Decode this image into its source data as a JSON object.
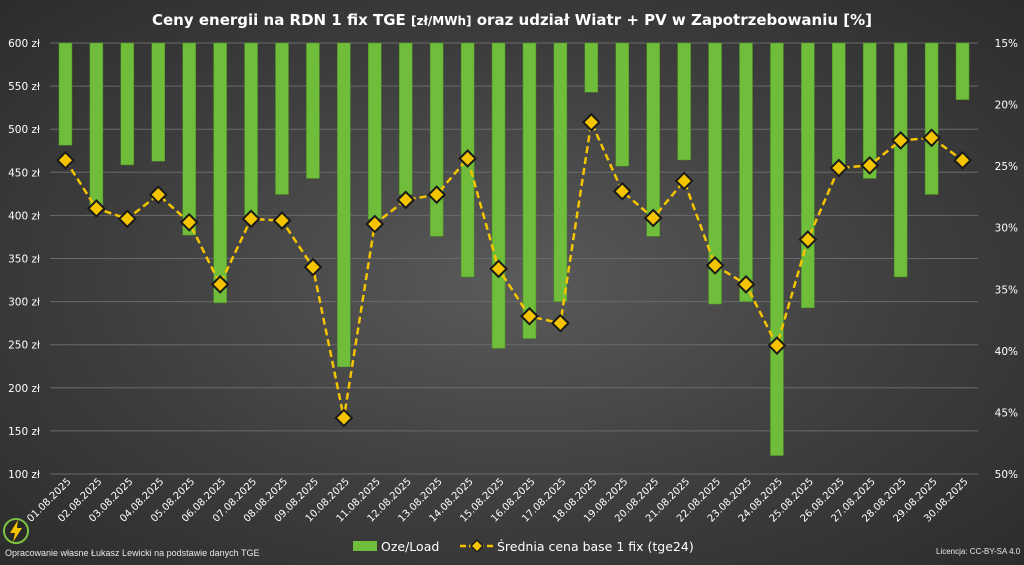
{
  "colors": {
    "bar": "#6fbd3a",
    "bar_edge": "#4e8f26",
    "line": "#f5c400",
    "marker_fill": "#f5c400",
    "marker_edge": "#1a1a1a",
    "grid": "#6a6a6a"
  },
  "chart_data": {
    "type": "bar",
    "title_main_1": "Ceny energii na RDN 1 fix TGE ",
    "title_unit": "[zł/MWh]",
    "title_main_2": " oraz udział Wiatr + PV w Zapotrzebowaniu [%]",
    "categories": [
      "01.08.2025",
      "02.08.2025",
      "03.08.2025",
      "04.08.2025",
      "05.08.2025",
      "06.08.2025",
      "07.08.2025",
      "08.08.2025",
      "09.08.2025",
      "10.08.2025",
      "11.08.2025",
      "12.08.2025",
      "13.08.2025",
      "14.08.2025",
      "15.08.2025",
      "16.08.2025",
      "17.08.2025",
      "18.08.2025",
      "19.08.2025",
      "20.08.2025",
      "21.08.2025",
      "22.08.2025",
      "23.08.2025",
      "24.08.2025",
      "25.08.2025",
      "26.08.2025",
      "27.08.2025",
      "28.08.2025",
      "29.08.2025",
      "30.08.2025"
    ],
    "y_left": {
      "min": 100,
      "max": 600,
      "step": 50,
      "suffix": " zł",
      "ticks": [
        "600 zł",
        "550 zł",
        "500 zł",
        "450 zł",
        "400 zł",
        "350 zł",
        "300 zł",
        "250 zł",
        "200 zł",
        "150 zł",
        "100 zł"
      ]
    },
    "y_right": {
      "min": 15,
      "max": 50,
      "step": 5,
      "reversed": true,
      "suffix": "%",
      "ticks": [
        "15%",
        "20%",
        "25%",
        "30%",
        "35%",
        "40%",
        "45%",
        "50%"
      ]
    },
    "series": [
      {
        "name": "Oze/Load",
        "type": "bar",
        "axis": "right",
        "values": [
          23.3,
          28.3,
          24.9,
          24.6,
          30.6,
          36.1,
          29.0,
          27.3,
          26.0,
          41.3,
          29.3,
          27.3,
          30.7,
          34.0,
          39.8,
          39.0,
          36.0,
          19.0,
          25.0,
          30.7,
          24.5,
          36.2,
          36.0,
          48.5,
          36.5,
          25.0,
          26.0,
          34.0,
          27.3,
          19.6
        ]
      },
      {
        "name": "Średnia cena base 1 fix (tge24)",
        "type": "line",
        "axis": "left",
        "values": [
          464,
          408,
          396,
          424,
          392,
          320,
          396,
          394,
          340,
          165,
          390,
          418,
          424,
          466,
          338,
          283,
          275,
          508,
          428,
          397,
          440,
          342,
          320,
          249,
          372,
          455,
          458,
          487,
          490,
          464
        ]
      }
    ],
    "grid": true,
    "legend_position": "bottom-center"
  },
  "footer": {
    "author": "Opracowanie własne Łukasz Lewicki na podstawie danych TGE",
    "license": "Licencja: CC-BY-SA 4.0"
  }
}
